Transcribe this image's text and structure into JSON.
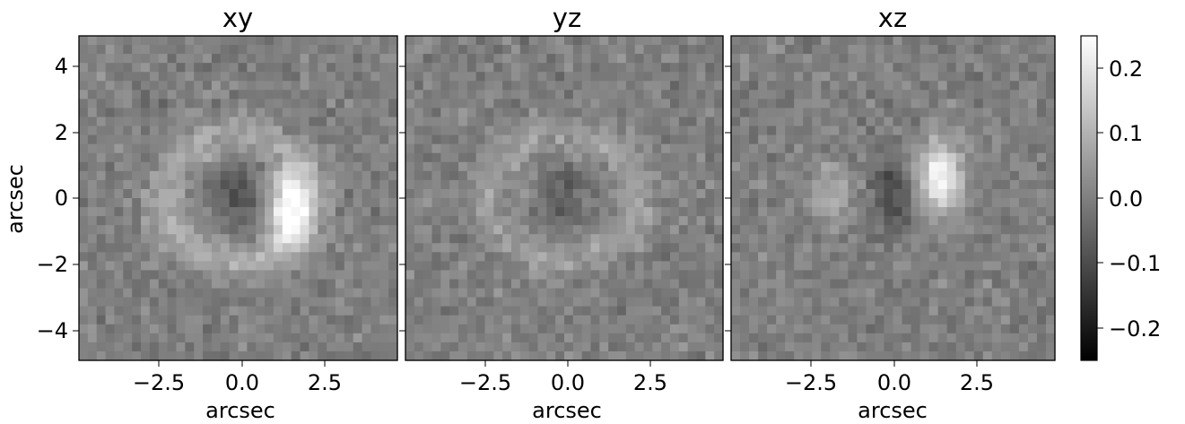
{
  "chart_data": [
    {
      "type": "heatmap",
      "title": "xy",
      "xlabel": "arcsec",
      "ylabel": "arcsec",
      "xlim": [
        -4.8,
        4.8
      ],
      "ylim": [
        -4.9,
        4.9
      ],
      "xticks": [
        "−2.5",
        "0.0",
        "2.5"
      ],
      "yticks": [
        "4",
        "2",
        "0",
        "−2",
        "−4"
      ],
      "features": [
        {
          "kind": "ring",
          "x": 0.0,
          "y": 0.0,
          "radius": 1.9,
          "value": 0.08
        },
        {
          "kind": "blob",
          "x": 0.0,
          "y": 0.0,
          "value": -0.08
        },
        {
          "kind": "blob",
          "x": 1.55,
          "y": -0.3,
          "value": 0.25
        }
      ]
    },
    {
      "type": "heatmap",
      "title": "yz",
      "xlabel": "arcsec",
      "xlim": [
        -4.8,
        4.8
      ],
      "ylim": [
        -4.9,
        4.9
      ],
      "xticks": [
        "−2.5",
        "0.0",
        "2.5"
      ],
      "features": [
        {
          "kind": "ring",
          "x": 0.0,
          "y": 0.0,
          "radius": 1.9,
          "value": 0.06
        },
        {
          "kind": "blob",
          "x": 0.0,
          "y": 0.0,
          "value": -0.06
        }
      ]
    },
    {
      "type": "heatmap",
      "title": "xz",
      "xlabel": "arcsec",
      "xlim": [
        -4.8,
        4.8
      ],
      "ylim": [
        -4.9,
        4.9
      ],
      "xticks": [
        "−2.5",
        "0.0",
        "2.5"
      ],
      "features": [
        {
          "kind": "blob",
          "x": -1.9,
          "y": 0.2,
          "value": 0.08
        },
        {
          "kind": "blob",
          "x": 0.0,
          "y": 0.2,
          "value": -0.1
        },
        {
          "kind": "blob",
          "x": 1.4,
          "y": 0.6,
          "value": 0.25
        }
      ]
    }
  ],
  "colorbar": {
    "cmap": "gray",
    "range": [
      -0.25,
      0.25
    ],
    "ticks": [
      "0.2",
      "0.1",
      "0.0",
      "−0.1",
      "−0.2"
    ]
  }
}
